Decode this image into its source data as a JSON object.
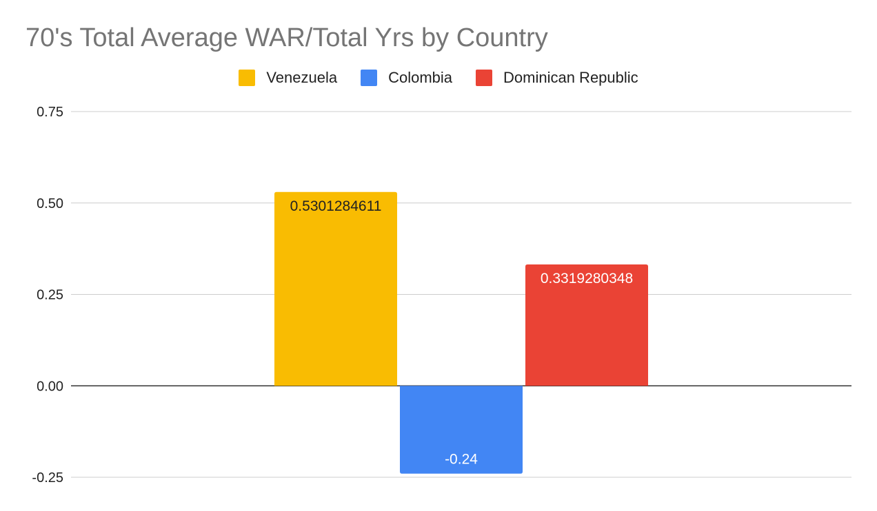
{
  "chart_data": {
    "type": "bar",
    "title": "70's Total Average WAR/Total Yrs by Country",
    "xlabel": "",
    "ylabel": "",
    "ylim": [
      -0.25,
      0.75
    ],
    "yticks": [
      -0.25,
      0.0,
      0.25,
      0.5,
      0.75
    ],
    "ytick_labels": [
      "-0.25",
      "0.00",
      "0.25",
      "0.50",
      "0.75"
    ],
    "grid": true,
    "legend_position": "top",
    "series": [
      {
        "name": "Venezuela",
        "values": [
          0.5301284611
        ],
        "label": "0.5301284611",
        "color": "#F9BC02"
      },
      {
        "name": "Colombia",
        "values": [
          -0.24
        ],
        "label": "-0.24",
        "color": "#4286F4"
      },
      {
        "name": "Dominican Republic",
        "values": [
          0.3319280348
        ],
        "label": "0.3319280348",
        "color": "#EA4335"
      }
    ]
  },
  "colors": {
    "title": "#757575",
    "gridline": "#cccccc",
    "zero_line": "#333333",
    "tick_text": "#222222"
  }
}
